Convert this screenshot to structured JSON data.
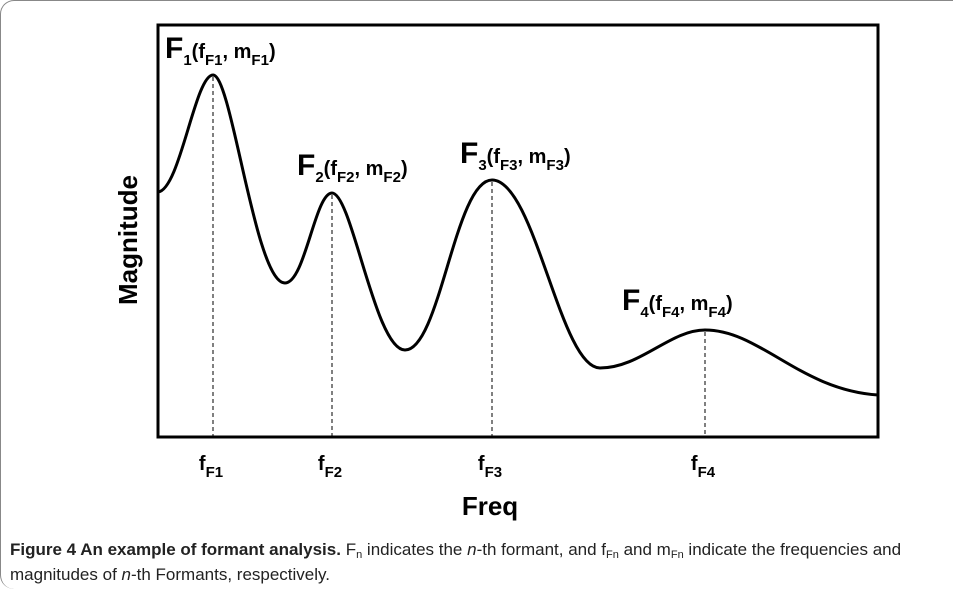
{
  "figure": {
    "peaks": [
      {
        "label": [
          "F",
          "1",
          "(f",
          "F1",
          ", m",
          "F1",
          ")"
        ]
      },
      {
        "label": [
          "F",
          "2",
          "(f",
          "F2",
          ", m",
          "F2",
          ")"
        ]
      },
      {
        "label": [
          "F",
          "3",
          "(f",
          "F3",
          ", m",
          "F3",
          ")"
        ]
      },
      {
        "label": [
          "F",
          "4",
          "(f",
          "F4",
          ", m",
          "F4",
          ")"
        ]
      }
    ],
    "x_ticks": [
      [
        "f",
        "F1"
      ],
      [
        "f",
        "F2"
      ],
      [
        "f",
        "F3"
      ],
      [
        "f",
        "F4"
      ]
    ],
    "y_label": "Magnitude",
    "x_label": "Freq",
    "caption": [
      {
        "text": "Figure 4 An example of formant analysis.",
        "style": "bold"
      },
      {
        "text": " F",
        "style": "normal"
      },
      {
        "text": "n",
        "style": "sub"
      },
      {
        "text": " indicates the ",
        "style": "normal"
      },
      {
        "text": "n",
        "style": "italic"
      },
      {
        "text": "-th formant, and f",
        "style": "normal"
      },
      {
        "text": "Fn",
        "style": "sub"
      },
      {
        "text": " and m",
        "style": "normal"
      },
      {
        "text": "Fn",
        "style": "sub"
      },
      {
        "text": " indicate the frequencies and magnitudes of ",
        "style": "normal"
      },
      {
        "text": "n",
        "style": "italic"
      },
      {
        "text": "-th Formants, respectively.",
        "style": "normal"
      }
    ]
  }
}
